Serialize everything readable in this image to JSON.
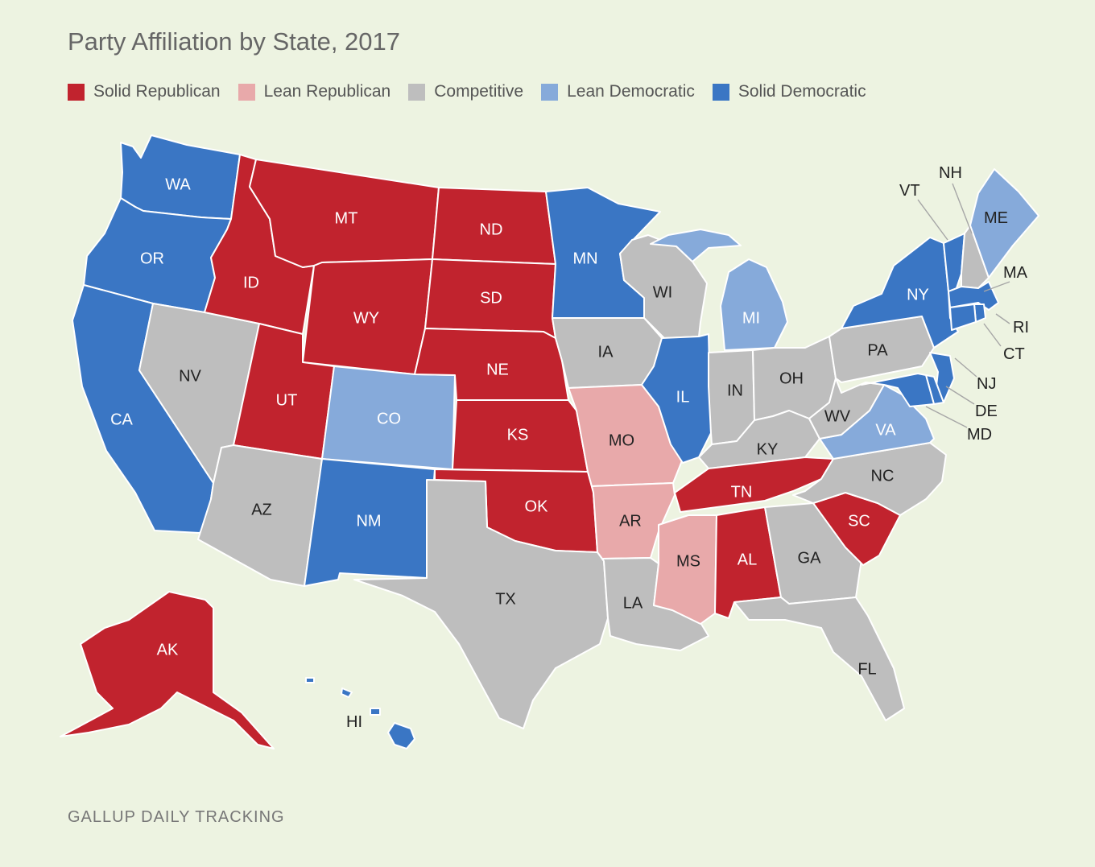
{
  "title": "Party Affiliation by State, 2017",
  "source": "GALLUP DAILY TRACKING",
  "categories": {
    "solid_rep": {
      "label": "Solid Republican",
      "color": "#C1232E"
    },
    "lean_rep": {
      "label": "Lean Republican",
      "color": "#E8A9AA"
    },
    "competitive": {
      "label": "Competitive",
      "color": "#BEBEBE"
    },
    "lean_dem": {
      "label": "Lean Democratic",
      "color": "#86AADA"
    },
    "solid_dem": {
      "label": "Solid Democratic",
      "color": "#3A76C4"
    }
  },
  "legend_order": [
    "solid_rep",
    "lean_rep",
    "competitive",
    "lean_dem",
    "solid_dem"
  ],
  "states": {
    "WA": "solid_dem",
    "OR": "solid_dem",
    "CA": "solid_dem",
    "NV": "competitive",
    "ID": "solid_rep",
    "MT": "solid_rep",
    "WY": "solid_rep",
    "UT": "solid_rep",
    "AZ": "competitive",
    "CO": "lean_dem",
    "NM": "solid_dem",
    "ND": "solid_rep",
    "SD": "solid_rep",
    "NE": "solid_rep",
    "KS": "solid_rep",
    "OK": "solid_rep",
    "TX": "competitive",
    "MN": "solid_dem",
    "IA": "competitive",
    "MO": "lean_rep",
    "AR": "lean_rep",
    "LA": "competitive",
    "WI": "competitive",
    "IL": "solid_dem",
    "MI": "lean_dem",
    "IN": "competitive",
    "OH": "competitive",
    "KY": "competitive",
    "TN": "solid_rep",
    "MS": "lean_rep",
    "AL": "solid_rep",
    "GA": "competitive",
    "FL": "competitive",
    "SC": "solid_rep",
    "NC": "competitive",
    "VA": "lean_dem",
    "WV": "competitive",
    "PA": "competitive",
    "NY": "solid_dem",
    "VT": "solid_dem",
    "NH": "competitive",
    "ME": "lean_dem",
    "MA": "solid_dem",
    "RI": "solid_dem",
    "CT": "solid_dem",
    "NJ": "solid_dem",
    "DE": "solid_dem",
    "MD": "solid_dem",
    "AK": "solid_rep",
    "HI": "solid_dem"
  }
}
